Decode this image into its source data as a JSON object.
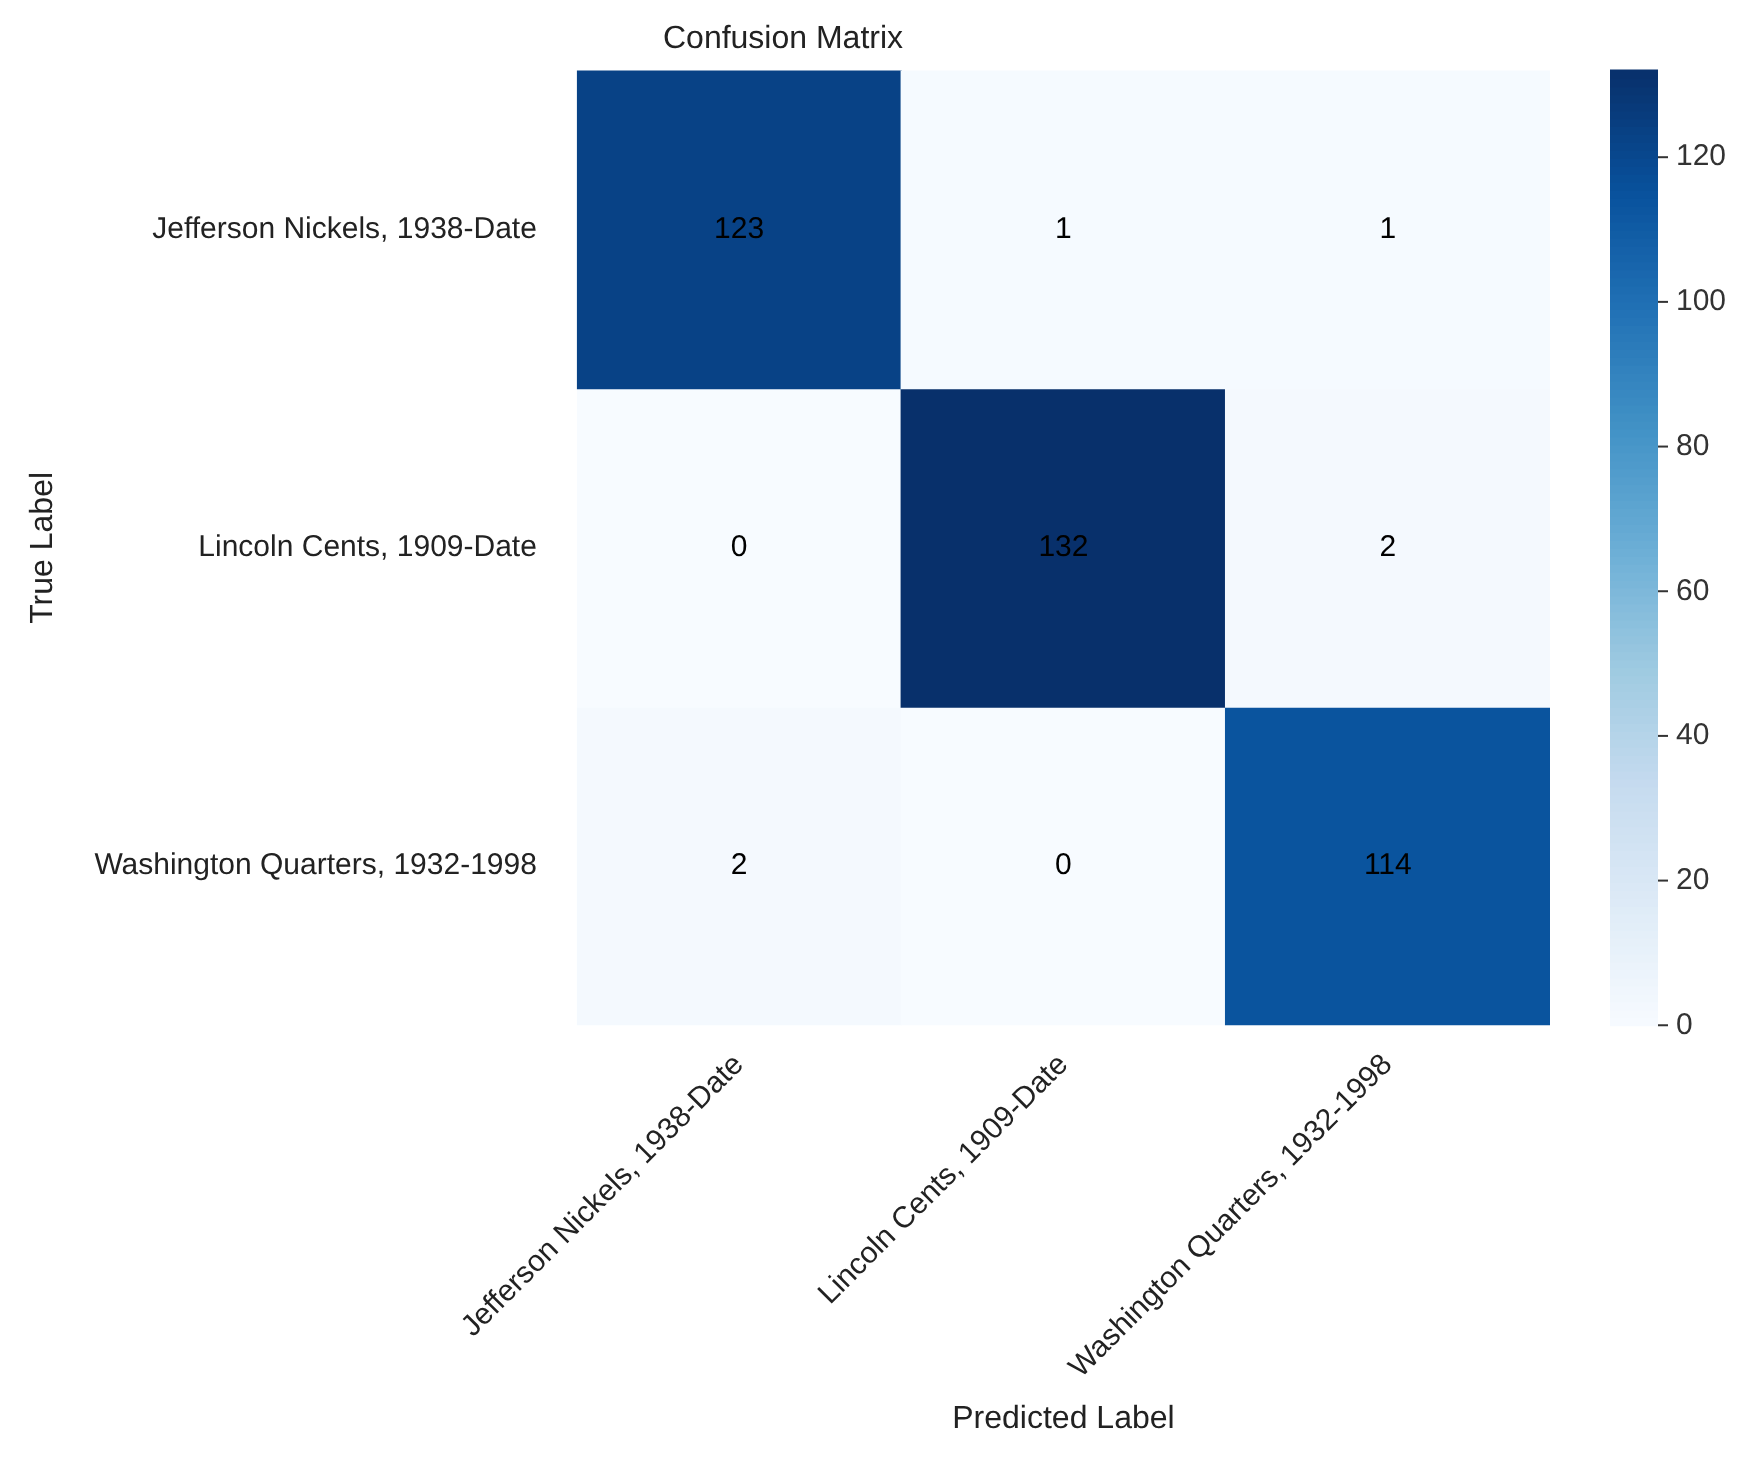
{
  "chart_data": {
    "type": "heatmap",
    "title": "Confusion Matrix",
    "xlabel": "Predicted Label",
    "ylabel": "True Label",
    "categories": [
      "Jefferson Nickels, 1938-Date",
      "Lincoln Cents, 1909-Date",
      "Washington Quarters, 1932-1998"
    ],
    "y_categories": [
      "Jefferson Nickels, 1938-Date",
      "Lincoln Cents, 1909-Date",
      "Washington Quarters, 1932-1998"
    ],
    "cells": [
      [
        123,
        1,
        1
      ],
      [
        0,
        132,
        2
      ],
      [
        2,
        0,
        114
      ]
    ],
    "clim": [
      0,
      132
    ],
    "cticks": [
      0,
      20,
      40,
      60,
      80,
      100,
      120
    ],
    "data_labels": true
  }
}
